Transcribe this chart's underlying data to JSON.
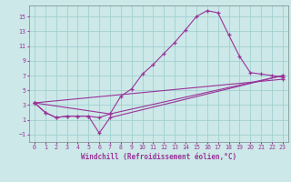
{
  "xlabel": "Windchill (Refroidissement éolien,°C)",
  "background_color": "#cce8e8",
  "line_color": "#993399",
  "grid_color": "#99cccc",
  "xlim": [
    -0.5,
    23.5
  ],
  "ylim": [
    -2.0,
    16.5
  ],
  "xticks": [
    0,
    1,
    2,
    3,
    4,
    5,
    6,
    7,
    8,
    9,
    10,
    11,
    12,
    13,
    14,
    15,
    16,
    17,
    18,
    19,
    20,
    21,
    22,
    23
  ],
  "yticks": [
    -1,
    1,
    3,
    5,
    7,
    9,
    11,
    13,
    15
  ],
  "curve1_x": [
    0,
    1,
    2,
    3,
    4,
    5,
    6,
    7,
    8,
    9,
    10,
    11,
    12,
    13,
    14,
    15,
    16,
    17,
    18,
    19,
    20,
    21,
    22,
    23
  ],
  "curve1_y": [
    3.3,
    2.0,
    1.3,
    1.5,
    1.5,
    1.5,
    1.3,
    1.8,
    4.2,
    5.2,
    7.2,
    8.5,
    10.0,
    11.5,
    13.2,
    15.0,
    15.8,
    15.5,
    12.5,
    9.6,
    7.4,
    7.2,
    7.0,
    6.8
  ],
  "curve2_x": [
    0,
    1,
    2,
    3,
    4,
    5,
    6,
    7,
    23
  ],
  "curve2_y": [
    3.3,
    2.0,
    1.3,
    1.5,
    1.5,
    1.5,
    -0.8,
    1.3,
    7.0
  ],
  "curve3_x": [
    0,
    7,
    23
  ],
  "curve3_y": [
    3.3,
    1.8,
    7.0
  ],
  "curve4_x": [
    0,
    23
  ],
  "curve4_y": [
    3.3,
    6.5
  ],
  "xlabel_fontsize": 5.5,
  "tick_fontsize": 4.8,
  "lw": 0.8,
  "ms": 3.0
}
